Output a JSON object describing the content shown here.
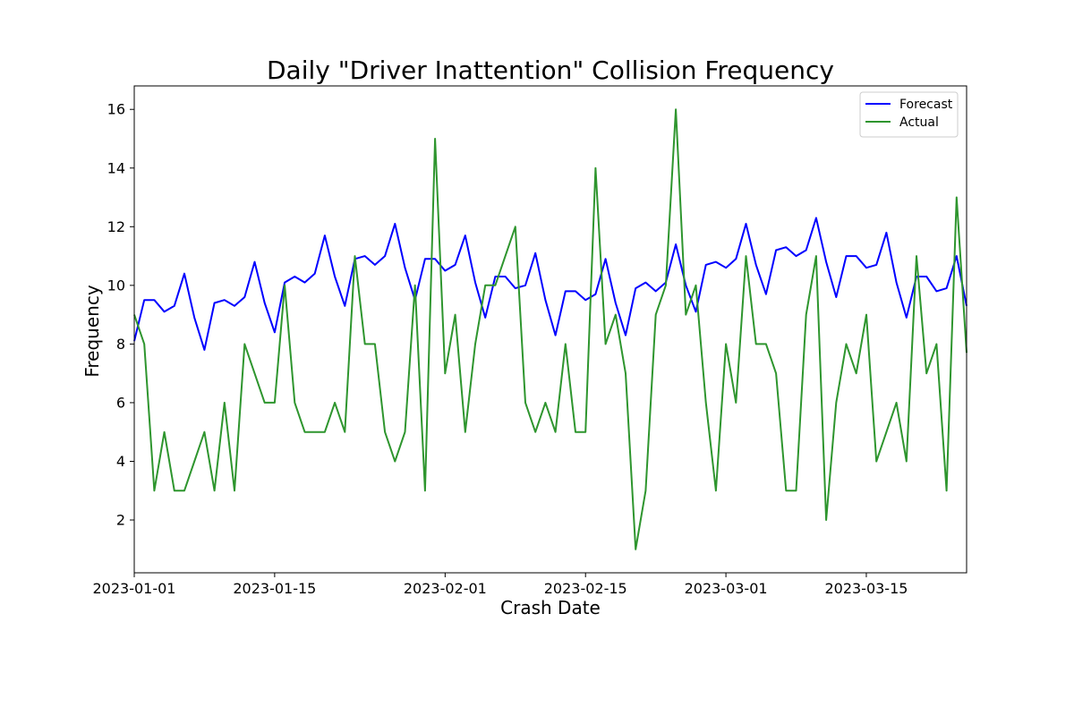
{
  "chart_data": {
    "type": "line",
    "title": "Daily \"Driver Inattention\" Collision Frequency",
    "xlabel": "Crash Date",
    "ylabel": "Frequency",
    "x_start": "2023-01-01",
    "x_end": "2023-03-25",
    "xlim": [
      "2023-01-01",
      "2023-03-25"
    ],
    "ylim": [
      0.2,
      16.8
    ],
    "yticks": [
      2,
      4,
      6,
      8,
      10,
      12,
      14,
      16
    ],
    "xticks": [
      "2023-01-01",
      "2023-01-15",
      "2023-02-01",
      "2023-02-15",
      "2023-03-01",
      "2023-03-15"
    ],
    "grid": false,
    "legend_position": "top-right",
    "series": [
      {
        "name": "Forecast",
        "color": "#0000ff",
        "values": [
          8.1,
          9.5,
          9.5,
          9.1,
          9.3,
          10.4,
          8.9,
          7.8,
          9.4,
          9.5,
          9.3,
          9.6,
          10.8,
          9.4,
          8.4,
          10.1,
          10.3,
          10.1,
          10.4,
          11.7,
          10.3,
          9.3,
          10.9,
          11.0,
          10.7,
          11.0,
          12.1,
          10.6,
          9.5,
          10.9,
          10.9,
          10.5,
          10.7,
          11.7,
          10.1,
          8.9,
          10.3,
          10.3,
          9.9,
          10.0,
          11.1,
          9.5,
          8.3,
          9.8,
          9.8,
          9.5,
          9.7,
          10.9,
          9.4,
          8.3,
          9.9,
          10.1,
          9.8,
          10.1,
          11.4,
          10.0,
          9.1,
          10.7,
          10.8,
          10.6,
          10.9,
          12.1,
          10.7,
          9.7,
          11.2,
          11.3,
          11.0,
          11.2,
          12.3,
          10.8,
          9.6,
          11.0,
          11.0,
          10.6,
          10.7,
          11.8,
          10.1,
          8.9,
          10.3,
          10.3,
          9.8,
          9.9,
          11.0,
          9.3
        ]
      },
      {
        "name": "Actual",
        "color": "#2e952e",
        "values": [
          9,
          8,
          3,
          5,
          3,
          3,
          4,
          5,
          3,
          6,
          3,
          8,
          7,
          6,
          6,
          10,
          6,
          5,
          5,
          5,
          6,
          5,
          11,
          8,
          8,
          5,
          4,
          5,
          10,
          3,
          15,
          7,
          9,
          5,
          8,
          10,
          10,
          11,
          12,
          6,
          5,
          6,
          5,
          8,
          5,
          5,
          14,
          8,
          9,
          7,
          1,
          3,
          9,
          10,
          16,
          9,
          10,
          6,
          3,
          8,
          6,
          11,
          8,
          8,
          7,
          3,
          3,
          9,
          11,
          2,
          6,
          8,
          7,
          9,
          4,
          5,
          6,
          4,
          11,
          7,
          8,
          3,
          13,
          7.7
        ]
      }
    ]
  }
}
